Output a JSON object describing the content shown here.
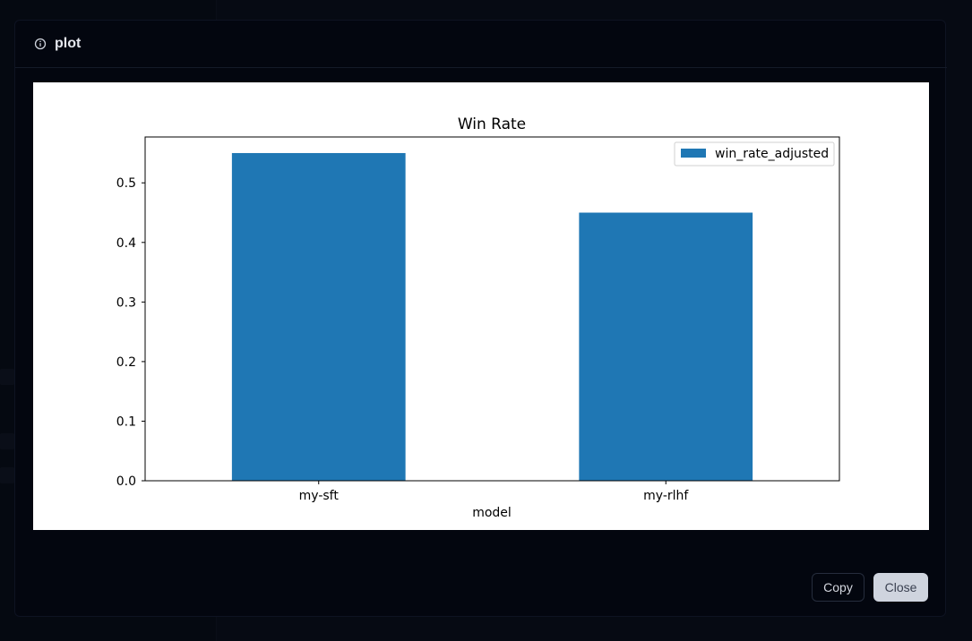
{
  "modal": {
    "title": "plot",
    "icon": "info-icon"
  },
  "footer": {
    "copy_label": "Copy",
    "close_label": "Close"
  },
  "colors": {
    "bar": "#1f77b4",
    "modal_bg": "#03060f",
    "close_button_bg": "#cfd4de"
  },
  "chart_data": {
    "type": "bar",
    "title": "Win Rate",
    "xlabel": "model",
    "ylabel": "",
    "categories": [
      "my-sft",
      "my-rlhf"
    ],
    "series": [
      {
        "name": "win_rate_adjusted",
        "values": [
          0.55,
          0.45
        ]
      }
    ],
    "ylim": [
      0,
      0.577
    ],
    "yticks": [
      "0.0",
      "0.1",
      "0.2",
      "0.3",
      "0.4",
      "0.5"
    ],
    "legend_position": "top-right",
    "grid": false
  }
}
